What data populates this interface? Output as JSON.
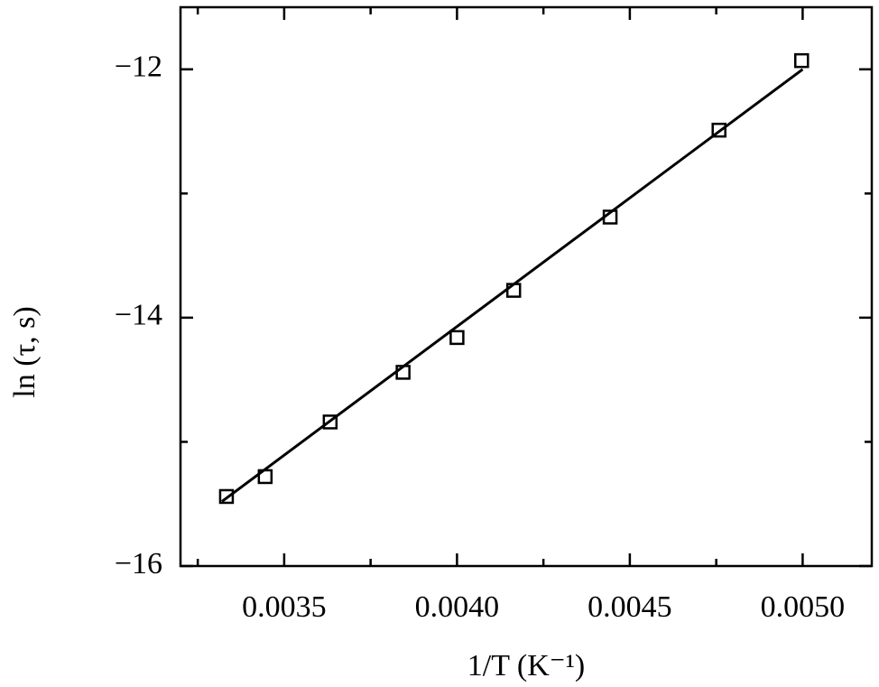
{
  "chart_data": {
    "type": "scatter",
    "x_label": "1/T (K⁻¹)",
    "y_label": "ln (τ, s)",
    "xlim": [
      0.0032,
      0.0052
    ],
    "ylim": [
      -16,
      -11.5
    ],
    "xticks": [
      0.0035,
      {
        "value": 0.004,
        "label": "0.0040"
      },
      0.0045,
      {
        "value": 0.005,
        "label": "0.0050"
      }
    ],
    "yticks": [
      {
        "value": -16,
        "label": "−16"
      },
      {
        "value": -14,
        "label": "−14"
      },
      {
        "value": -12,
        "label": "−12"
      }
    ],
    "xminorticks": [
      0.00325,
      0.00375,
      0.00425,
      0.00475
    ],
    "yminorticks": [
      -15,
      -13
    ],
    "series": [
      {
        "color": "#000000",
        "marker": "square",
        "x": [
          0.003333,
          0.003445,
          0.003633,
          0.003844,
          0.004,
          0.004164,
          0.004443,
          0.004758,
          0.004997
        ],
        "values": [
          -15.44,
          -15.28,
          -14.84,
          -14.44,
          -14.16,
          -13.78,
          -13.19,
          -12.49,
          -11.93
        ]
      },
      {
        "color": "#000000",
        "marker": "line",
        "x": [
          0.00332,
          0.005
        ],
        "values": [
          -15.48,
          -12.0
        ]
      }
    ]
  }
}
